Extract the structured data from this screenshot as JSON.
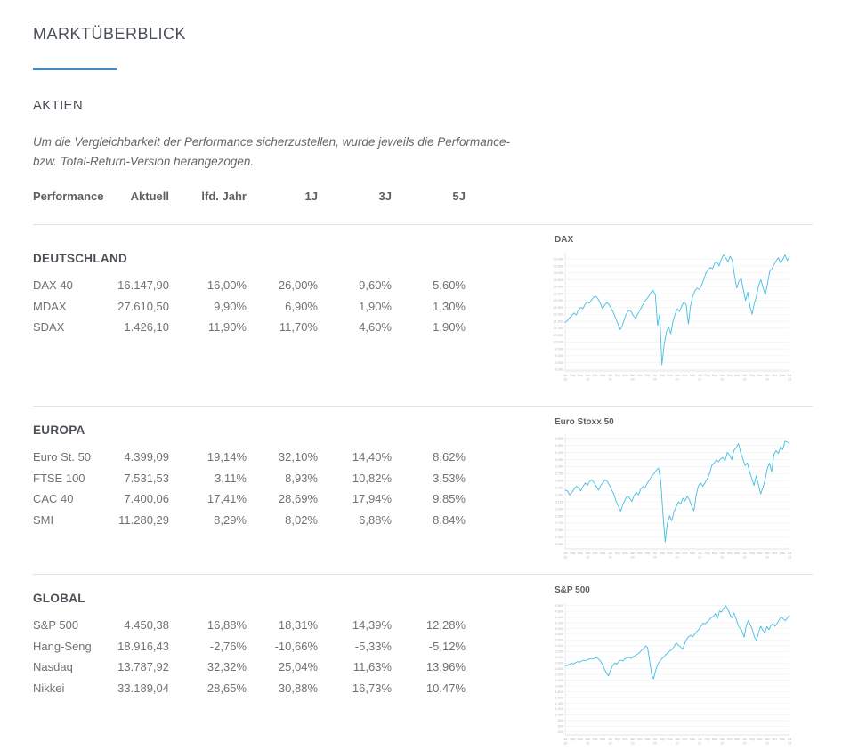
{
  "page": {
    "title": "MARKTÜBERBLICK",
    "section_heading": "AKTIEN",
    "disclaimer": "Um die Vergleichbarkeit der Performance sicherzustellen, wurde jeweils die Performance-\nbzw. Total-Return-Version herangezogen."
  },
  "colors": {
    "accent_blue": "#4a8bc6",
    "chart_line": "#44bde2",
    "heading_text": "#4a5056",
    "body_text": "#6e7277",
    "divider": "#dfe1e3",
    "axis_text": "#b4b7ba",
    "gridline": "#f1f2f3"
  },
  "table": {
    "headers": [
      "Performance",
      "Aktuell",
      "lfd. Jahr",
      "1J",
      "3J",
      "5J"
    ],
    "groups": [
      {
        "name": "DEUTSCHLAND",
        "rows": [
          [
            "DAX 40",
            "16.147,90",
            "16,00%",
            "26,00%",
            "9,60%",
            "5,60%"
          ],
          [
            "MDAX",
            "27.610,50",
            "9,90%",
            "6,90%",
            "1,90%",
            "1,30%"
          ],
          [
            "SDAX",
            "1.426,10",
            "11,90%",
            "11,70%",
            "4,60%",
            "1,90%"
          ]
        ]
      },
      {
        "name": "EUROPA",
        "rows": [
          [
            "Euro St. 50",
            "4.399,09",
            "19,14%",
            "32,10%",
            "14,40%",
            "8,62%"
          ],
          [
            "FTSE 100",
            "7.531,53",
            "3,11%",
            "8,93%",
            "10,82%",
            "3,53%"
          ],
          [
            "CAC 40",
            "7.400,06",
            "17,41%",
            "28,69%",
            "17,94%",
            "9,85%"
          ],
          [
            "SMI",
            "11.280,29",
            "8,29%",
            "8,02%",
            "6,88%",
            "8,84%"
          ]
        ]
      },
      {
        "name": "GLOBAL",
        "rows": [
          [
            "S&P 500",
            "4.450,38",
            "16,88%",
            "18,31%",
            "14,39%",
            "12,28%"
          ],
          [
            "Hang-Seng",
            "18.916,43",
            "-2,76%",
            "-10,66%",
            "-5,33%",
            "-5,12%"
          ],
          [
            "Nasdaq",
            "13.787,92",
            "32,32%",
            "25,04%",
            "11,63%",
            "13,96%"
          ],
          [
            "Nikkei",
            "33.189,04",
            "28,65%",
            "30,88%",
            "16,73%",
            "10,47%"
          ]
        ]
      }
    ]
  },
  "chart_data": [
    {
      "type": "line",
      "title": "DAX",
      "legend": "none",
      "grid": true,
      "y_min": 7900,
      "y_max": 16400,
      "y_step": 500,
      "x_labels": [
        "Jul|18",
        "Sep",
        "Nov",
        "Jan|19",
        "Mrz",
        "Mai",
        "Jul|19",
        "Sep",
        "Nov",
        "Jan|20",
        "Mrz",
        "Mai",
        "Jul|20",
        "Sep",
        "Nov",
        "Jan|21",
        "Mrz",
        "Mai",
        "Jul|21",
        "Sep",
        "Nov",
        "Jan|22",
        "Mrz",
        "Mai",
        "Jul|22",
        "Sep",
        "Nov",
        "Jan|23",
        "Mrz",
        "Mai",
        "Jul|23"
      ],
      "values": [
        11400,
        11550,
        11750,
        11900,
        12100,
        11950,
        12300,
        12500,
        12400,
        12700,
        12900,
        12800,
        13050,
        13250,
        13300,
        13100,
        12800,
        12400,
        12700,
        12850,
        12700,
        12400,
        12100,
        11700,
        11300,
        10900,
        11200,
        11700,
        12100,
        12300,
        12200,
        11900,
        11700,
        12000,
        12300,
        12600,
        12900,
        13100,
        13300,
        13600,
        13750,
        13400,
        11200,
        12000,
        8350,
        9800,
        10700,
        11100,
        10600,
        11500,
        12000,
        12400,
        12200,
        12600,
        12900,
        12700,
        11300,
        12600,
        13300,
        13700,
        13900,
        13800,
        14100,
        14500,
        15000,
        15200,
        15400,
        15300,
        15700,
        15800,
        15500,
        16000,
        16300,
        16100,
        15800,
        16200,
        15900,
        14800,
        13900,
        14400,
        14600,
        13800,
        13000,
        13600,
        12600,
        12000,
        12800,
        13300,
        14100,
        14500,
        13900,
        13400,
        14200,
        15100,
        15300,
        15600,
        15900,
        16100,
        15700,
        16000,
        16300,
        15900,
        16150
      ]
    },
    {
      "type": "line",
      "title": "Euro Stoxx 50",
      "legend": "none",
      "grid": true,
      "y_min": 2150,
      "y_max": 4550,
      "y_step": 150,
      "x_labels": [
        "Jul|18",
        "Sep",
        "Nov",
        "Jan|19",
        "Mrz",
        "Mai",
        "Jul|19",
        "Sep",
        "Nov",
        "Jan|20",
        "Mrz",
        "Mai",
        "Jul|20",
        "Sep",
        "Nov",
        "Jan|21",
        "Mrz",
        "Mai",
        "Jul|21",
        "Sep",
        "Nov",
        "Jan|22",
        "Mrz",
        "Mai",
        "Jul|22",
        "Sep",
        "Nov",
        "Jan|23",
        "Mrz",
        "Mai",
        "Jul|23"
      ],
      "values": [
        3400,
        3380,
        3300,
        3350,
        3420,
        3480,
        3450,
        3380,
        3480,
        3550,
        3500,
        3580,
        3620,
        3560,
        3480,
        3400,
        3500,
        3560,
        3620,
        3580,
        3500,
        3400,
        3300,
        3150,
        3050,
        2950,
        3100,
        3200,
        3280,
        3230,
        3160,
        3280,
        3350,
        3300,
        3420,
        3480,
        3450,
        3550,
        3620,
        3700,
        3750,
        3820,
        3870,
        3600,
        2900,
        2300,
        2700,
        2850,
        2750,
        2950,
        3050,
        3150,
        3100,
        3230,
        3170,
        3270,
        3190,
        3050,
        2960,
        3300,
        3490,
        3550,
        3480,
        3560,
        3640,
        3750,
        3920,
        3970,
        4040,
        4000,
        4060,
        4090,
        4020,
        4200,
        4150,
        4050,
        4250,
        4300,
        4390,
        4200,
        4060,
        3920,
        3980,
        3800,
        3650,
        3500,
        3700,
        3520,
        3320,
        3450,
        3620,
        3850,
        3970,
        3790,
        4160,
        4240,
        4180,
        4320,
        4260,
        4440,
        4420,
        4399
      ]
    },
    {
      "type": "line",
      "title": "S&P 500",
      "legend": "none",
      "grid": true,
      "y_min": 300,
      "y_max": 4850,
      "y_step": 200,
      "x_labels": [
        "Jul|18",
        "Sep",
        "Nov",
        "Jan|19",
        "Mrz",
        "Mai",
        "Jul|19",
        "Sep",
        "Nov",
        "Jan|20",
        "Mrz",
        "Mai",
        "Jul|20",
        "Sep",
        "Nov",
        "Jan|21",
        "Mrz",
        "Mai",
        "Jul|21",
        "Sep",
        "Nov",
        "Jan|22",
        "Mrz",
        "Mai",
        "Jul|22",
        "Sep",
        "Nov",
        "Jan|23",
        "Mrz",
        "Mai",
        "Jul|23"
      ],
      "values": [
        2700,
        2720,
        2750,
        2790,
        2770,
        2810,
        2850,
        2830,
        2870,
        2900,
        2880,
        2920,
        2950,
        2930,
        2960,
        2990,
        2950,
        2880,
        2760,
        2600,
        2450,
        2350,
        2550,
        2700,
        2800,
        2760,
        2850,
        2900,
        2870,
        2940,
        2980,
        3000,
        2960,
        3020,
        3060,
        3100,
        3150,
        3230,
        3300,
        3390,
        3340,
        2900,
        2400,
        2250,
        2550,
        2750,
        2870,
        2950,
        3020,
        3100,
        3160,
        3230,
        3270,
        3380,
        3500,
        3420,
        3360,
        3270,
        3450,
        3620,
        3720,
        3760,
        3710,
        3810,
        3900,
        3970,
        4080,
        4180,
        4160,
        4230,
        4300,
        4380,
        4420,
        4520,
        4350,
        4610,
        4570,
        4700,
        4790,
        4680,
        4500,
        4370,
        4540,
        4350,
        4130,
        4000,
        3900,
        3700,
        4100,
        4280,
        4130,
        3950,
        3700,
        3590,
        3860,
        4080,
        3950,
        3840,
        4070,
        3960,
        4110,
        4160,
        4080,
        4180,
        4300,
        4410,
        4330,
        4270,
        4380,
        4450
      ]
    }
  ]
}
